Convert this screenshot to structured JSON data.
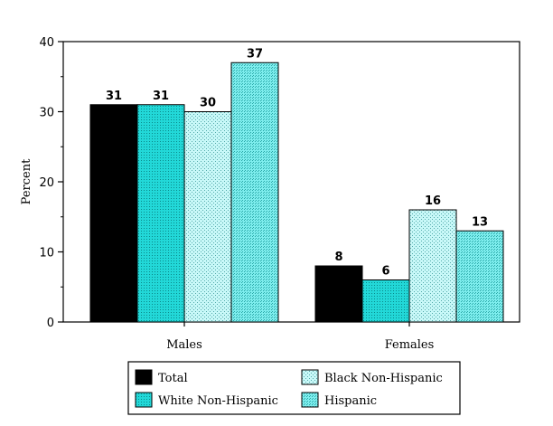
{
  "chart_data": {
    "type": "bar",
    "title": "",
    "xlabel": "",
    "ylabel": "Percent",
    "ylim": [
      0,
      40
    ],
    "yticks": [
      0,
      10,
      20,
      30,
      40
    ],
    "grid": false,
    "legend_position": "bottom",
    "categories": [
      "Males",
      "Females"
    ],
    "series": [
      {
        "name": "Total",
        "values": [
          31,
          8
        ],
        "color": "#000000",
        "pattern": "solid"
      },
      {
        "name": "White Non-Hispanic",
        "values": [
          31,
          6
        ],
        "color": "#33e0e0",
        "pattern": "dense"
      },
      {
        "name": "Black Non-Hispanic",
        "values": [
          30,
          16
        ],
        "color": "#a8f4f4",
        "pattern": "light"
      },
      {
        "name": "Hispanic",
        "values": [
          37,
          13
        ],
        "color": "#66e8e8",
        "pattern": "medium"
      }
    ]
  }
}
